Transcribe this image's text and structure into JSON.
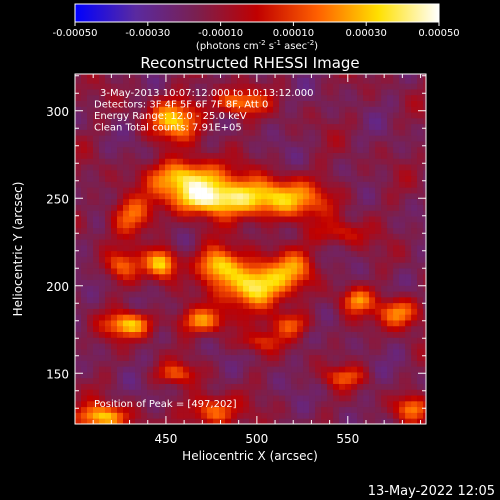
{
  "chart_data": {
    "type": "heatmap",
    "title": "Reconstructed RHESSI Image",
    "xlabel": "Heliocentric X (arcsec)",
    "ylabel": "Heliocentric Y (arcsec)",
    "xlim": [
      400,
      593
    ],
    "ylim": [
      121,
      321
    ],
    "xticks": [
      450,
      500,
      550
    ],
    "yticks": [
      150,
      200,
      250,
      300
    ],
    "colorbar": {
      "range": [
        -0.0005,
        0.0005
      ],
      "ticks": [
        "-0.00050",
        "-0.00030",
        "-0.00010",
        "0.00010",
        "0.00030",
        "0.00050"
      ],
      "tick_values": [
        -0.0005,
        -0.0003,
        -0.0001,
        0.0001,
        0.0003,
        0.0005
      ],
      "label": "(photons cm",
      "label_sup1": "-2",
      "label_mid": " s",
      "label_sup2": "-1",
      "label_mid2": " asec",
      "label_sup3": "-2",
      "label_end": ")",
      "stops": [
        "#0000ff",
        "#5a2aa0",
        "#7a2050",
        "#c00000",
        "#ff6000",
        "#ffe000",
        "#ffffff"
      ]
    },
    "annotations": [
      "3-May-2013 10:07:12.000 to 10:13:12.000",
      "Detectors: 3F 4F 5F 6F 7F 8F, Att 0",
      "Energy Range: 12.0 - 25.0 keV",
      "Clean      Total counts: 7.91E+05"
    ],
    "peak_label": "Position of Peak = [497,202]",
    "peak": [
      497,
      202
    ],
    "sources": [
      {
        "x": 498,
        "y": 200,
        "amp": 1.0,
        "sx": 11,
        "sy": 9
      },
      {
        "x": 478,
        "y": 212,
        "amp": 0.75,
        "sx": 8,
        "sy": 7
      },
      {
        "x": 505,
        "y": 250,
        "amp": 0.85,
        "sx": 22,
        "sy": 8
      },
      {
        "x": 462,
        "y": 262,
        "amp": 0.85,
        "sx": 14,
        "sy": 7
      },
      {
        "x": 470,
        "y": 250,
        "amp": 0.7,
        "sx": 12,
        "sy": 6
      },
      {
        "x": 455,
        "y": 295,
        "amp": 0.7,
        "sx": 10,
        "sy": 8
      },
      {
        "x": 490,
        "y": 305,
        "amp": 0.6,
        "sx": 10,
        "sy": 5
      },
      {
        "x": 430,
        "y": 240,
        "amp": 0.55,
        "sx": 8,
        "sy": 8
      },
      {
        "x": 448,
        "y": 213,
        "amp": 0.85,
        "sx": 6,
        "sy": 6
      },
      {
        "x": 425,
        "y": 212,
        "amp": 0.45,
        "sx": 7,
        "sy": 6
      },
      {
        "x": 520,
        "y": 210,
        "amp": 0.5,
        "sx": 9,
        "sy": 8
      },
      {
        "x": 545,
        "y": 230,
        "amp": 0.35,
        "sx": 10,
        "sy": 5
      },
      {
        "x": 430,
        "y": 178,
        "amp": 0.75,
        "sx": 9,
        "sy": 5
      },
      {
        "x": 470,
        "y": 180,
        "amp": 0.55,
        "sx": 10,
        "sy": 5
      },
      {
        "x": 520,
        "y": 178,
        "amp": 0.45,
        "sx": 8,
        "sy": 5
      },
      {
        "x": 500,
        "y": 168,
        "amp": 0.3,
        "sx": 10,
        "sy": 4
      },
      {
        "x": 578,
        "y": 185,
        "amp": 0.65,
        "sx": 8,
        "sy": 6
      },
      {
        "x": 555,
        "y": 192,
        "amp": 0.55,
        "sx": 6,
        "sy": 5
      },
      {
        "x": 415,
        "y": 125,
        "amp": 0.75,
        "sx": 10,
        "sy": 5
      },
      {
        "x": 455,
        "y": 150,
        "amp": 0.4,
        "sx": 8,
        "sy": 4
      },
      {
        "x": 475,
        "y": 128,
        "amp": 0.6,
        "sx": 9,
        "sy": 6
      },
      {
        "x": 548,
        "y": 148,
        "amp": 0.4,
        "sx": 8,
        "sy": 4
      },
      {
        "x": 585,
        "y": 130,
        "amp": 0.55,
        "sx": 6,
        "sy": 5
      }
    ]
  },
  "footer": {
    "timestamp": "13-May-2022 12:05"
  }
}
